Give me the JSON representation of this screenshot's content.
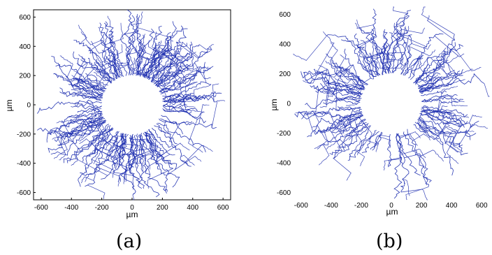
{
  "captions": [
    "(a)",
    "(b)"
  ],
  "chart_data": [
    {
      "type": "scatter",
      "title": "",
      "xlabel": "µm",
      "ylabel": "µm",
      "xlim": [
        -650,
        650
      ],
      "ylim": [
        -650,
        650
      ],
      "xticks": [
        -600,
        -400,
        -200,
        0,
        200,
        400,
        600
      ],
      "yticks": [
        -600,
        -400,
        -200,
        0,
        200,
        400,
        600
      ],
      "grid": false,
      "description_series": [
        {
          "name": "",
          "color": "#1f2fb0",
          "inner_radius": 200,
          "outer_radius_max": 650,
          "trace_count": 150,
          "seed": 7
        }
      ]
    },
    {
      "type": "scatter",
      "title": "",
      "xlabel": "µm",
      "ylabel": "µm",
      "xlim": [
        -650,
        650
      ],
      "ylim": [
        -650,
        650
      ],
      "xticks": [
        -600,
        -400,
        -200,
        0,
        200,
        400,
        600
      ],
      "yticks": [
        -600,
        -400,
        -200,
        0,
        200,
        400,
        600
      ],
      "grid": false,
      "description_series": [
        {
          "name": "",
          "color": "#1f2fb0",
          "inner_radius": 200,
          "outer_radius_max": 640,
          "trace_count": 110,
          "seed": 13
        }
      ]
    }
  ]
}
